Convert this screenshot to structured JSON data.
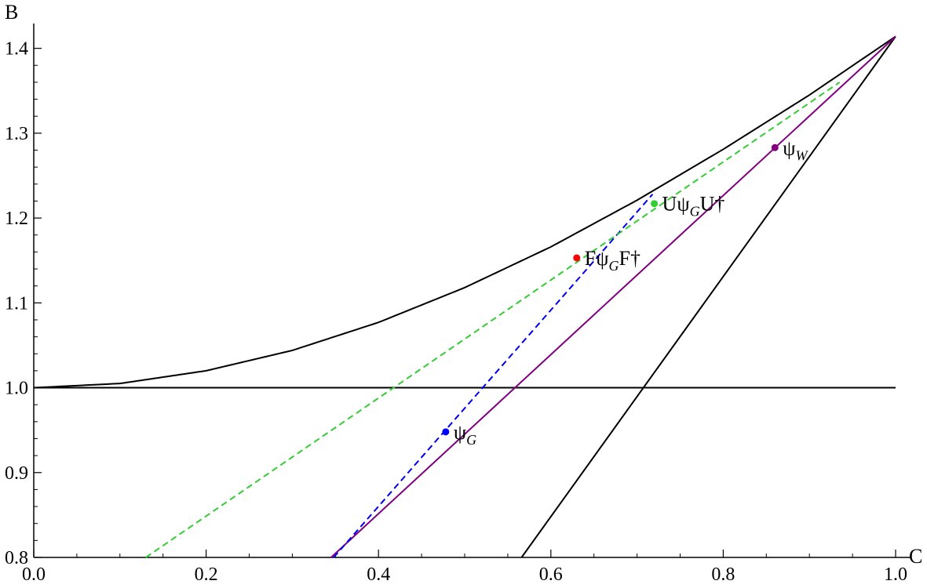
{
  "chart_data": {
    "type": "line",
    "xlabel": "C",
    "ylabel": "B",
    "xlim": [
      0.0,
      1.0
    ],
    "ylim": [
      0.8,
      1.42
    ],
    "x_ticks": [
      "0.0",
      "0.2",
      "0.4",
      "0.6",
      "0.8",
      "1.0"
    ],
    "y_ticks": [
      "0.8",
      "0.9",
      "1.0",
      "1.1",
      "1.2",
      "1.3",
      "1.4"
    ],
    "grid": false,
    "series": [
      {
        "style": "solid",
        "color": "#000000",
        "x": [
          0.0,
          0.1,
          0.2,
          0.3,
          0.4,
          0.5,
          0.6,
          0.7,
          0.8,
          0.9,
          1.0
        ],
        "y": [
          1.0,
          1.005,
          1.02,
          1.044,
          1.077,
          1.118,
          1.166,
          1.221,
          1.281,
          1.345,
          1.414
        ]
      },
      {
        "style": "solid",
        "color": "#000000",
        "x": [
          0.0,
          1.0
        ],
        "y": [
          1.0,
          1.0
        ]
      },
      {
        "style": "solid",
        "color": "#000000",
        "x": [
          0.566,
          1.0
        ],
        "y": [
          0.8,
          1.414
        ]
      },
      {
        "style": "solid",
        "color": "#800080",
        "x": [
          0.345,
          1.0
        ],
        "y": [
          0.8,
          1.414
        ]
      },
      {
        "style": "dashed",
        "color": "#0000ee",
        "x": [
          0.348,
          0.718
        ],
        "y": [
          0.8,
          1.228
        ]
      },
      {
        "style": "dashed",
        "color": "#33cc33",
        "x": [
          0.13,
          0.935
        ],
        "y": [
          0.8,
          1.36
        ]
      }
    ],
    "points": [
      {
        "label": "ψ",
        "sub": "G",
        "suffix": "",
        "x": 0.478,
        "y": 0.948,
        "color": "#0000ff"
      },
      {
        "label": "Fψ",
        "sub": "G",
        "suffix": "F†",
        "x": 0.63,
        "y": 1.153,
        "color": "#ff0000"
      },
      {
        "label": "Uψ",
        "sub": "G",
        "suffix": "U†",
        "x": 0.72,
        "y": 1.217,
        "color": "#33cc33"
      },
      {
        "label": "ψ",
        "sub": "W",
        "suffix": "",
        "x": 0.86,
        "y": 1.283,
        "color": "#800080"
      }
    ]
  }
}
